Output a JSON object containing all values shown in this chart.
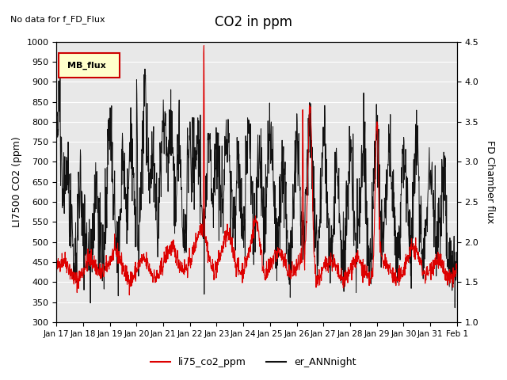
{
  "title": "CO2 in ppm",
  "xlabel": "",
  "ylabel_left": "LI7500 CO2 (ppm)",
  "ylabel_right": "FD Chamber flux",
  "ylim_left": [
    300,
    1000
  ],
  "ylim_right": [
    1.0,
    4.5
  ],
  "no_data_text": "No data for f_FD_Flux",
  "mb_flux_label": "MB_flux",
  "legend_labels": [
    "li75_co2_ppm",
    "er_ANNnight"
  ],
  "line_colors": [
    "#dd0000",
    "#111111"
  ],
  "background_color": "#e8e8e8",
  "fig_background": "#ffffff",
  "xtick_labels": [
    "Jan 17",
    "Jan 18",
    "Jan 19",
    "Jan 20",
    "Jan 21",
    "Jan 22",
    "Jan 23",
    "Jan 24",
    "Jan 25",
    "Jan 26",
    "Jan 27",
    "Jan 28",
    "Jan 29",
    "Jan 30",
    "Jan 31",
    "Feb 1"
  ],
  "n_points": 1440,
  "seed": 42
}
